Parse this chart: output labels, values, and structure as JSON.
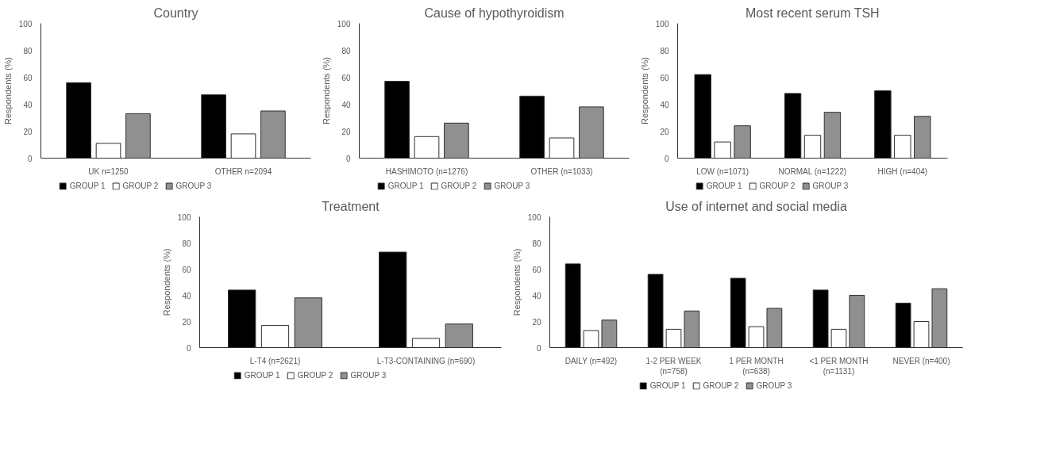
{
  "chart_data": [
    {
      "type": "bar",
      "title": "Country",
      "ylabel": "Respondents (%)",
      "categories": [
        "UK n=1250",
        "OTHER n=2094"
      ],
      "ylim": [
        0,
        100
      ],
      "yticks": [
        0,
        20,
        40,
        60,
        80,
        100
      ],
      "legend": "bottom",
      "series": [
        {
          "name": "GROUP 1",
          "color": "#000000",
          "values": [
            56,
            47
          ]
        },
        {
          "name": "GROUP 2",
          "color": "#ffffff",
          "values": [
            11,
            18
          ]
        },
        {
          "name": "GROUP 3",
          "color": "#909090",
          "values": [
            33,
            35
          ]
        }
      ]
    },
    {
      "type": "bar",
      "title": "Cause of hypothyroidism",
      "ylabel": "Respondents (%)",
      "categories": [
        "HASHIMOTO (n=1276)",
        "OTHER (n=1033)"
      ],
      "ylim": [
        0,
        100
      ],
      "yticks": [
        0,
        20,
        40,
        60,
        80,
        100
      ],
      "legend": "bottom",
      "series": [
        {
          "name": "GROUP 1",
          "color": "#000000",
          "values": [
            57,
            46
          ]
        },
        {
          "name": "GROUP 2",
          "color": "#ffffff",
          "values": [
            16,
            15
          ]
        },
        {
          "name": "GROUP 3",
          "color": "#909090",
          "values": [
            26,
            38
          ]
        }
      ]
    },
    {
      "type": "bar",
      "title": "Most recent serum TSH",
      "ylabel": "Respondents (%)",
      "categories": [
        "LOW (n=1071)",
        "NORMAL (n=1222)",
        "HIGH (n=404)"
      ],
      "ylim": [
        0,
        100
      ],
      "yticks": [
        0,
        20,
        40,
        60,
        80,
        100
      ],
      "legend": "bottom",
      "series": [
        {
          "name": "GROUP 1",
          "color": "#000000",
          "values": [
            62,
            48,
            50
          ]
        },
        {
          "name": "GROUP 2",
          "color": "#ffffff",
          "values": [
            12,
            17,
            17
          ]
        },
        {
          "name": "GROUP 3",
          "color": "#909090",
          "values": [
            24,
            34,
            31
          ]
        }
      ]
    },
    {
      "type": "bar",
      "title": "Treatment",
      "ylabel": "Respondents (%)",
      "categories": [
        "L-T4 (n=2621)",
        "L-T3-CONTAINING (n=690)"
      ],
      "ylim": [
        0,
        100
      ],
      "yticks": [
        0,
        20,
        40,
        60,
        80,
        100
      ],
      "legend": "bottom",
      "series": [
        {
          "name": "GROUP 1",
          "color": "#000000",
          "values": [
            44,
            73
          ]
        },
        {
          "name": "GROUP 2",
          "color": "#ffffff",
          "values": [
            17,
            7
          ]
        },
        {
          "name": "GROUP 3",
          "color": "#909090",
          "values": [
            38,
            18
          ]
        }
      ]
    },
    {
      "type": "bar",
      "title": "Use of internet and social media",
      "ylabel": "Respondents (%)",
      "categories": [
        "DAILY (n=492)",
        "1-2 PER WEEK\n(n=758)",
        "1 PER MONTH\n(n=638)",
        "<1 PER MONTH\n(n=1131)",
        "NEVER (n=400)"
      ],
      "ylim": [
        0,
        100
      ],
      "yticks": [
        0,
        20,
        40,
        60,
        80,
        100
      ],
      "legend": "bottom",
      "series": [
        {
          "name": "GROUP 1",
          "color": "#000000",
          "values": [
            64,
            56,
            53,
            44,
            34
          ]
        },
        {
          "name": "GROUP 2",
          "color": "#ffffff",
          "values": [
            13,
            14,
            16,
            14,
            20
          ]
        },
        {
          "name": "GROUP 3",
          "color": "#909090",
          "values": [
            21,
            28,
            30,
            40,
            45
          ]
        }
      ]
    }
  ]
}
